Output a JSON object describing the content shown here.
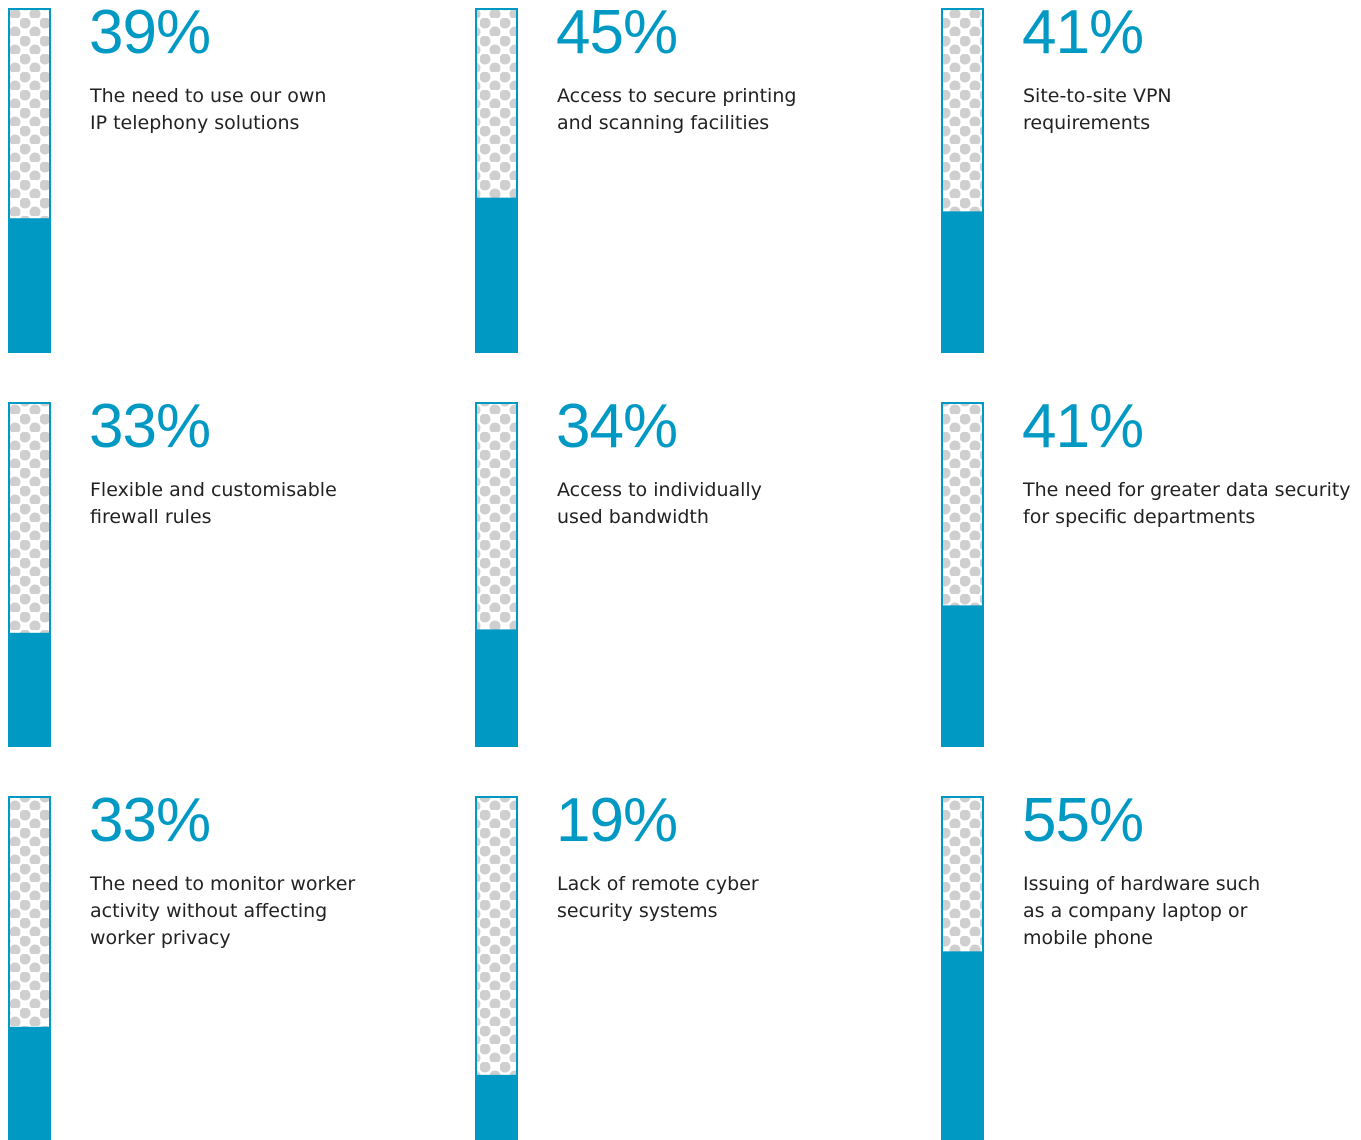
{
  "chart_data": {
    "type": "bar",
    "categories": [
      "The need to use our own\nIP telephony solutions",
      "Access to secure printing\nand scanning facilities",
      "Site-to-site VPN\nrequirements",
      "Flexible and customisable\nfirewall rules",
      "Access to individually\nused bandwidth",
      "The need for greater data security\nfor specific departments",
      "The need to monitor worker\nactivity without affecting\nworker privacy",
      "Lack of remote cyber\nsecurity systems",
      "Issuing of hardware such\nas a company laptop or\nmobile phone"
    ],
    "values": [
      39,
      45,
      41,
      33,
      34,
      41,
      33,
      19,
      55
    ],
    "value_labels": [
      "39%",
      "45%",
      "41%",
      "33%",
      "34%",
      "41%",
      "33%",
      "19%",
      "55%"
    ],
    "ylim": [
      0,
      100
    ],
    "color": "#0099c4"
  }
}
